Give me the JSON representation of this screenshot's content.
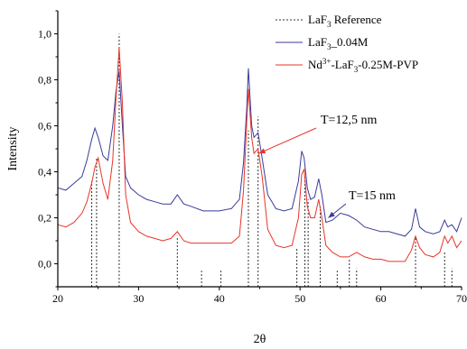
{
  "chart_data": {
    "type": "line",
    "xlabel": "2θ",
    "ylabel": "Intensity",
    "xlim": [
      20,
      70
    ],
    "ylim": [
      -0.1,
      1.1
    ],
    "x_ticks": [
      20,
      30,
      40,
      50,
      60,
      70
    ],
    "x_tick_labels": [
      "20",
      "30",
      "40",
      "50",
      "60",
      "70"
    ],
    "y_ticks": [
      0.0,
      0.2,
      0.4,
      0.6,
      0.8,
      1.0
    ],
    "y_tick_labels": [
      "0,0",
      "0,2",
      "0,4",
      "0,6",
      "0,8",
      "1,0"
    ],
    "grid": false,
    "legend_position": "top-right",
    "legend": [
      {
        "base": "LaF",
        "sub": "3",
        "tail": " Reference",
        "color": "#333333",
        "style": "dashed"
      },
      {
        "base": "LaF",
        "sub": "3",
        "tail": "_0.04M",
        "color": "#3a3a9a",
        "style": "solid"
      },
      {
        "base": "Nd",
        "sup": "3+",
        "tail": "-LaF",
        "sub2": "3",
        "tail2": "-0.25M-PVP",
        "color": "#e8342a",
        "style": "solid"
      }
    ],
    "reference_lines": [
      {
        "x": 24.2,
        "y": 0.36
      },
      {
        "x": 24.8,
        "y": 0.46
      },
      {
        "x": 27.6,
        "y": 1.0
      },
      {
        "x": 34.8,
        "y": 0.12
      },
      {
        "x": 37.8,
        "y": -0.03
      },
      {
        "x": 40.2,
        "y": -0.03
      },
      {
        "x": 43.6,
        "y": 0.58
      },
      {
        "x": 44.8,
        "y": 0.64
      },
      {
        "x": 49.6,
        "y": 0.07
      },
      {
        "x": 50.6,
        "y": 0.38
      },
      {
        "x": 51.0,
        "y": 0.28
      },
      {
        "x": 52.5,
        "y": 0.25
      },
      {
        "x": 54.6,
        "y": -0.03
      },
      {
        "x": 56.1,
        "y": 0.02
      },
      {
        "x": 57.0,
        "y": -0.02
      },
      {
        "x": 64.3,
        "y": 0.12
      },
      {
        "x": 67.9,
        "y": 0.05
      },
      {
        "x": 68.8,
        "y": -0.02
      }
    ],
    "series": [
      {
        "name": "LaF3_0.04M",
        "color": "#3a3a9a",
        "x": [
          20,
          21,
          22,
          23,
          23.6,
          24.2,
          24.6,
          25,
          25.6,
          26.2,
          26.8,
          27.2,
          27.6,
          28,
          28.4,
          29,
          30,
          31,
          32,
          33,
          34,
          34.8,
          35.6,
          36.5,
          38,
          40,
          41.5,
          42.5,
          43,
          43.4,
          43.6,
          44,
          44.3,
          44.8,
          45.3,
          46,
          47,
          48,
          49,
          49.8,
          50.2,
          50.5,
          50.9,
          51.3,
          51.8,
          52.3,
          52.7,
          53.2,
          54,
          55,
          56,
          57,
          58,
          59,
          60,
          61,
          62,
          63,
          63.8,
          64.3,
          64.8,
          65.5,
          66.5,
          67.3,
          67.9,
          68.3,
          68.8,
          69.4,
          70
        ],
        "y": [
          0.33,
          0.32,
          0.35,
          0.38,
          0.45,
          0.54,
          0.59,
          0.55,
          0.47,
          0.45,
          0.6,
          0.75,
          0.84,
          0.6,
          0.38,
          0.33,
          0.3,
          0.28,
          0.27,
          0.26,
          0.26,
          0.3,
          0.26,
          0.25,
          0.23,
          0.23,
          0.24,
          0.28,
          0.44,
          0.68,
          0.85,
          0.6,
          0.55,
          0.57,
          0.46,
          0.3,
          0.24,
          0.23,
          0.24,
          0.36,
          0.49,
          0.46,
          0.33,
          0.28,
          0.29,
          0.37,
          0.3,
          0.18,
          0.19,
          0.22,
          0.21,
          0.19,
          0.16,
          0.15,
          0.14,
          0.14,
          0.13,
          0.12,
          0.15,
          0.24,
          0.16,
          0.14,
          0.13,
          0.14,
          0.19,
          0.16,
          0.17,
          0.14,
          0.2
        ]
      },
      {
        "name": "Nd3+-LaF3-0.25M-PVP",
        "color": "#e8342a",
        "x": [
          20,
          21,
          22,
          23,
          23.6,
          24.2,
          24.6,
          25,
          25.6,
          26.2,
          26.8,
          27.2,
          27.6,
          28,
          28.4,
          29,
          30,
          31,
          32,
          33,
          34,
          34.8,
          35.6,
          36.5,
          38,
          40,
          41.5,
          42.5,
          43,
          43.4,
          43.6,
          44,
          44.3,
          44.8,
          45.3,
          46,
          47,
          48,
          49,
          49.8,
          50.2,
          50.5,
          50.9,
          51.3,
          51.8,
          52.3,
          52.7,
          53.2,
          54,
          55,
          56,
          57,
          58,
          59,
          60,
          61,
          62,
          63,
          63.8,
          64.3,
          64.8,
          65.5,
          66.5,
          67.3,
          67.9,
          68.3,
          68.8,
          69.4,
          70
        ],
        "y": [
          0.17,
          0.16,
          0.18,
          0.22,
          0.27,
          0.35,
          0.42,
          0.46,
          0.35,
          0.28,
          0.45,
          0.72,
          0.94,
          0.7,
          0.3,
          0.18,
          0.14,
          0.12,
          0.11,
          0.1,
          0.11,
          0.14,
          0.1,
          0.09,
          0.09,
          0.09,
          0.09,
          0.12,
          0.32,
          0.62,
          0.76,
          0.55,
          0.48,
          0.5,
          0.38,
          0.15,
          0.08,
          0.07,
          0.08,
          0.2,
          0.39,
          0.41,
          0.25,
          0.2,
          0.2,
          0.28,
          0.2,
          0.08,
          0.05,
          0.03,
          0.03,
          0.05,
          0.03,
          0.02,
          0.02,
          0.01,
          0.01,
          0.01,
          0.06,
          0.12,
          0.07,
          0.04,
          0.03,
          0.05,
          0.12,
          0.09,
          0.12,
          0.07,
          0.1
        ]
      }
    ],
    "annotations": [
      {
        "text": "T=12,5 nm",
        "color": "#e8342a",
        "arrow_to": [
          44.9,
          0.48
        ]
      },
      {
        "text": "T=15 nm",
        "color": "#3a3a9a",
        "arrow_to": [
          53.5,
          0.2
        ]
      }
    ]
  }
}
